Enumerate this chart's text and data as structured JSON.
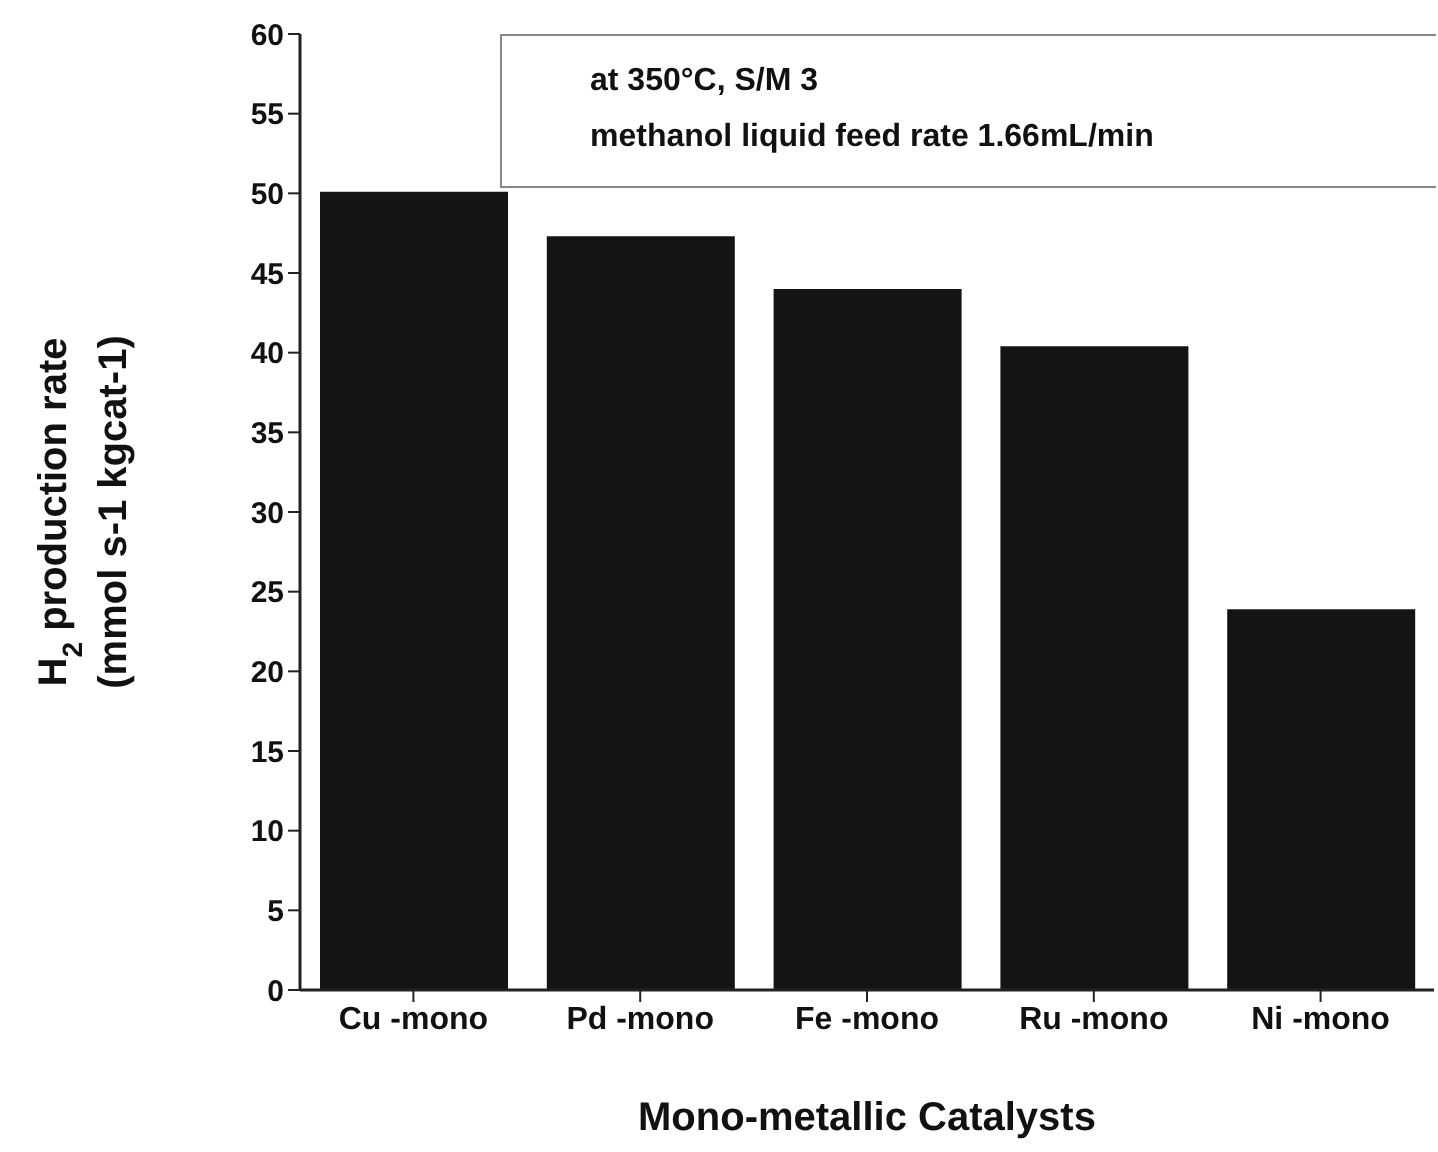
{
  "chart_data": {
    "type": "bar",
    "xlabel": "Mono-metallic Catalysts",
    "ylabel": "H$_{2}$ production rate\n(mmol s-1 kgcat-1)",
    "categories": [
      "Cu -mono",
      "Pd -mono",
      "Fe -mono",
      "Ru -mono",
      "Ni -mono"
    ],
    "values": [
      50.1,
      47.3,
      44.0,
      40.4,
      23.9
    ],
    "color": "#141414",
    "ylim": [
      0,
      60
    ],
    "yticks": [
      0,
      5,
      10,
      15,
      20,
      25,
      30,
      35,
      40,
      45,
      50,
      55,
      60
    ],
    "grid": false,
    "annotations": [
      "at 350°C, S/M 3",
      "methanol liquid feed rate 1.66mL/min"
    ]
  }
}
